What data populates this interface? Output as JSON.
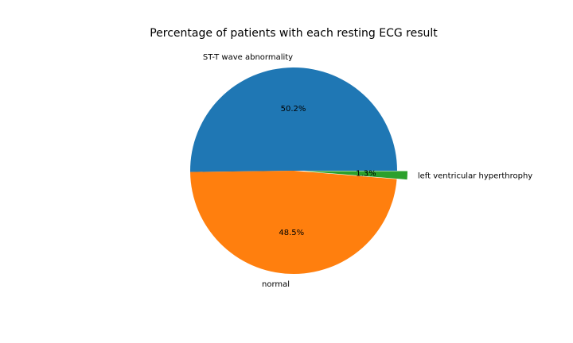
{
  "chart_data": {
    "type": "pie",
    "title": "Percentage of patients with each resting ECG result",
    "slices": [
      {
        "label": "ST-T wave abnormality",
        "value": 50.2,
        "pct_label": "50.2%",
        "color": "#1f77b4",
        "explode": 0
      },
      {
        "label": "normal",
        "value": 48.5,
        "pct_label": "48.5%",
        "color": "#ff7f0e",
        "explode": 0
      },
      {
        "label": "left ventricular hyperthrophy",
        "value": 1.3,
        "pct_label": "1.3%",
        "color": "#2ca02c",
        "explode": 0.1
      }
    ],
    "start_angle_deg": 0,
    "direction": "counterclockwise",
    "legend": "none"
  }
}
